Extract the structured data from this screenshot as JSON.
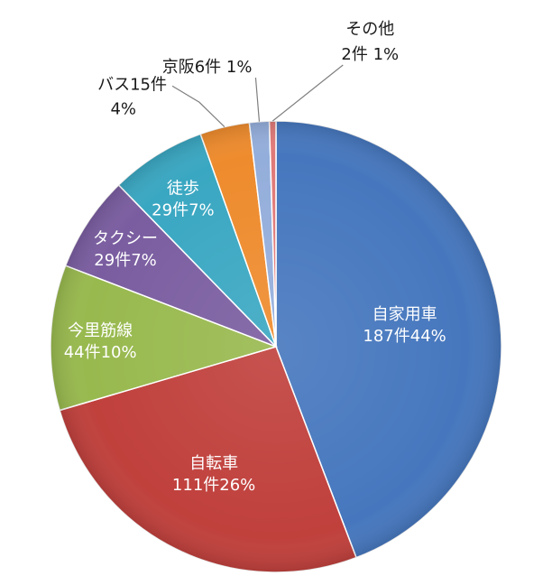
{
  "chart_data": {
    "type": "pie",
    "title": "",
    "unit": "件",
    "slices": [
      {
        "name": "自家用車",
        "count_label": "187件",
        "percent_label": "44%",
        "value": 187,
        "color": "#4677BE"
      },
      {
        "name": "自転車",
        "count_label": "111件",
        "percent_label": "26%",
        "value": 111,
        "color": "#C0403C"
      },
      {
        "name": "今里筋線",
        "count_label": "44件",
        "percent_label": "10%",
        "value": 44,
        "color": "#98B94E"
      },
      {
        "name": "タクシー",
        "count_label": "29件",
        "percent_label": "7%",
        "value": 29,
        "color": "#7A5DA0"
      },
      {
        "name": "徒歩",
        "count_label": "29件",
        "percent_label": "7%",
        "value": 29,
        "color": "#3AA7C2"
      },
      {
        "name": "バス",
        "count_label": "15件",
        "percent_label": "4%",
        "value": 15,
        "color": "#EE8B2D"
      },
      {
        "name": "京阪",
        "count_label": "6件",
        "percent_label": "1%",
        "value": 6,
        "color": "#94AEDB"
      },
      {
        "name": "その他",
        "count_label": "2件",
        "percent_label": "1%",
        "value": 2,
        "color": "#E07A78"
      }
    ]
  }
}
